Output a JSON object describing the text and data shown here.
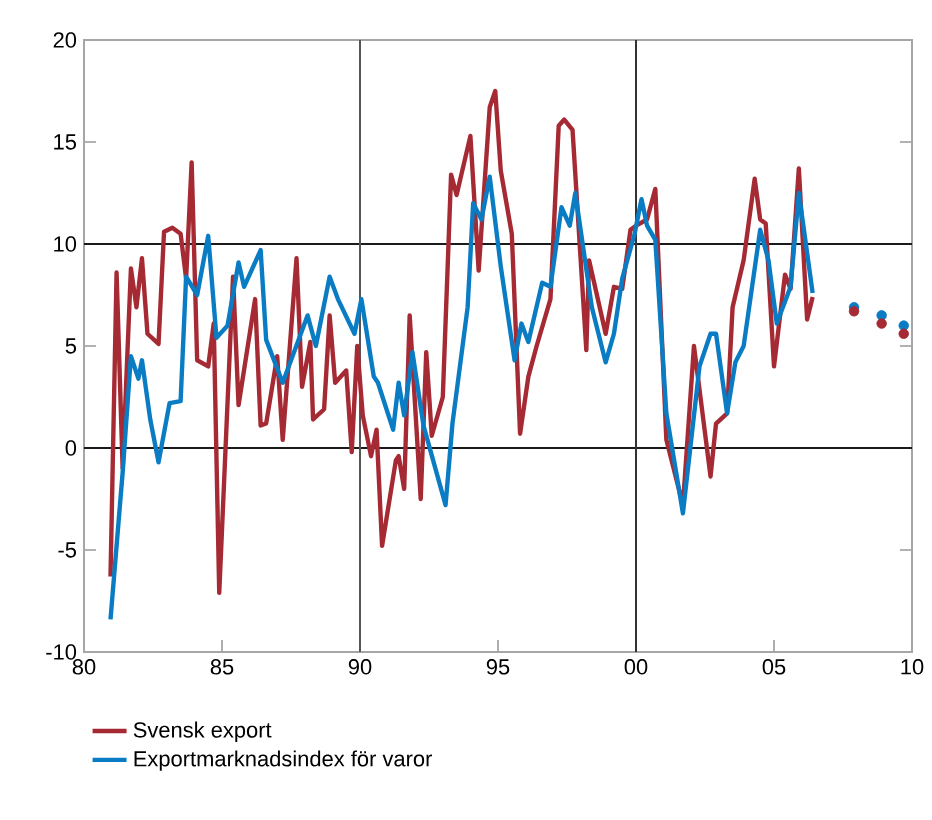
{
  "chart_data": {
    "type": "line",
    "xlim": [
      1980,
      2010
    ],
    "ylim": [
      -10,
      20
    ],
    "xticks": [
      {
        "value": 1980,
        "label": "80"
      },
      {
        "value": 1985,
        "label": "85"
      },
      {
        "value": 1990,
        "label": "90"
      },
      {
        "value": 1995,
        "label": "95"
      },
      {
        "value": 2000,
        "label": "00"
      },
      {
        "value": 2005,
        "label": "05"
      },
      {
        "value": 2010,
        "label": "10"
      }
    ],
    "yticks": [
      -10,
      -5,
      0,
      5,
      10,
      15,
      20
    ],
    "legend": "bottom",
    "grid": false,
    "line_style": "solid",
    "ref_lines": [
      {
        "axis": "y",
        "value": 0,
        "color": "#1a1a1a"
      },
      {
        "axis": "y",
        "value": 10,
        "color": "#1a1a1a"
      },
      {
        "axis": "x",
        "value": 1990,
        "color": "#555555"
      },
      {
        "axis": "x",
        "value": 2000,
        "color": "#333333"
      }
    ],
    "series": [
      {
        "name": "Svensk export",
        "color": "#a52a33",
        "x": [
          1980.96,
          1981.18,
          1981.4,
          1981.7,
          1981.9,
          1982.1,
          1982.3,
          1982.7,
          1982.9,
          1983.2,
          1983.5,
          1983.7,
          1983.9,
          1984.1,
          1984.5,
          1984.7,
          1984.9,
          1985.4,
          1985.6,
          1986.2,
          1986.4,
          1986.6,
          1987.0,
          1987.2,
          1987.7,
          1987.9,
          1988.2,
          1988.3,
          1988.7,
          1988.9,
          1989.1,
          1989.5,
          1989.7,
          1989.9,
          1990.1,
          1990.4,
          1990.6,
          1990.8,
          1991.3,
          1991.4,
          1991.6,
          1991.8,
          1992.2,
          1992.4,
          1992.6,
          1993.0,
          1993.3,
          1993.5,
          1994.0,
          1994.3,
          1994.7,
          1994.9,
          1995.1,
          1995.5,
          1995.8,
          1996.1,
          1996.4,
          1996.9,
          1997.2,
          1997.4,
          1997.7,
          1998.2,
          1998.3,
          1998.9,
          1999.2,
          1999.5,
          1999.8,
          2000.0,
          2000.4,
          2000.7,
          2001.1,
          2001.7,
          2002.1,
          2002.7,
          2002.9,
          2003.3,
          2003.5,
          2003.9,
          2004.3,
          2004.5,
          2004.7,
          2005.0,
          2005.4,
          2005.6,
          2005.9,
          2006.2,
          2006.4
        ],
        "values": [
          -6.3,
          8.6,
          -1.0,
          8.8,
          6.9,
          9.3,
          5.6,
          5.1,
          10.6,
          10.8,
          10.5,
          8.3,
          14.0,
          4.3,
          4.0,
          6.1,
          -7.1,
          8.4,
          2.1,
          7.3,
          1.1,
          1.2,
          4.5,
          0.4,
          9.3,
          3.0,
          5.2,
          1.4,
          1.9,
          6.5,
          3.2,
          3.8,
          -0.2,
          5.0,
          1.6,
          -0.4,
          0.9,
          -4.8,
          -0.6,
          -0.4,
          -2.0,
          6.5,
          -2.5,
          4.7,
          0.6,
          2.5,
          13.4,
          12.4,
          15.3,
          8.7,
          16.7,
          17.5,
          13.6,
          10.5,
          0.7,
          3.5,
          5.0,
          7.3,
          15.8,
          16.1,
          15.6,
          4.8,
          9.2,
          5.6,
          7.9,
          7.8,
          10.7,
          10.9,
          11.2,
          12.7,
          0.4,
          -2.8,
          5.0,
          -1.4,
          1.2,
          1.7,
          6.9,
          9.2,
          13.2,
          11.2,
          11.0,
          4.0,
          8.5,
          7.8,
          13.7,
          6.3,
          7.4
        ]
      },
      {
        "name": "Exportmarknadsindex för varor",
        "color": "#0a7cc4",
        "x": [
          1980.96,
          1981.4,
          1981.7,
          1981.97,
          1982.1,
          1982.4,
          1982.7,
          1983.1,
          1983.5,
          1983.7,
          1984.1,
          1984.5,
          1984.8,
          1985.2,
          1985.6,
          1985.8,
          1986.4,
          1986.6,
          1987.2,
          1988.1,
          1988.4,
          1988.9,
          1989.2,
          1989.8,
          1990.05,
          1990.5,
          1990.65,
          1991.2,
          1991.4,
          1991.6,
          1991.9,
          1992.3,
          1993.1,
          1993.35,
          1993.9,
          1994.1,
          1994.4,
          1994.7,
          1995.1,
          1995.6,
          1995.85,
          1996.1,
          1996.6,
          1996.9,
          1997.3,
          1997.6,
          1997.8,
          1998.4,
          1998.9,
          1999.2,
          1999.5,
          1999.95,
          2000.2,
          2000.4,
          2000.7,
          2001.1,
          2001.7,
          2002.3,
          2002.7,
          2002.9,
          2003.3,
          2003.6,
          2003.9,
          2004.5,
          2004.8,
          2005.1,
          2005.6,
          2005.9,
          2006.4
        ],
        "values": [
          -8.4,
          -1.2,
          4.5,
          3.4,
          4.3,
          1.4,
          -0.7,
          2.2,
          2.3,
          8.4,
          7.5,
          10.4,
          5.4,
          6.0,
          9.1,
          7.9,
          9.7,
          5.3,
          3.2,
          6.5,
          5.0,
          8.4,
          7.3,
          5.6,
          7.3,
          3.5,
          3.2,
          0.9,
          3.2,
          1.6,
          4.7,
          1.1,
          -2.8,
          1.2,
          6.9,
          12.0,
          11.2,
          13.3,
          8.9,
          4.3,
          6.1,
          5.2,
          8.1,
          7.9,
          11.8,
          10.9,
          12.5,
          6.9,
          4.2,
          5.6,
          8.3,
          10.5,
          12.2,
          10.9,
          10.2,
          1.7,
          -3.2,
          4.0,
          5.6,
          5.6,
          1.7,
          4.2,
          5.0,
          10.7,
          9.2,
          6.1,
          7.9,
          12.5,
          7.6
        ]
      },
      {
        "type": "scatter",
        "color": "#0a7cc4",
        "marker": "circle",
        "x": [
          2007.9,
          2008.9,
          2009.7
        ],
        "values": [
          6.9,
          6.5,
          6.0
        ]
      },
      {
        "type": "scatter",
        "color": "#a52a33",
        "marker": "circle",
        "x": [
          2007.9,
          2008.9,
          2009.7
        ],
        "values": [
          6.7,
          6.1,
          5.6
        ]
      }
    ]
  }
}
